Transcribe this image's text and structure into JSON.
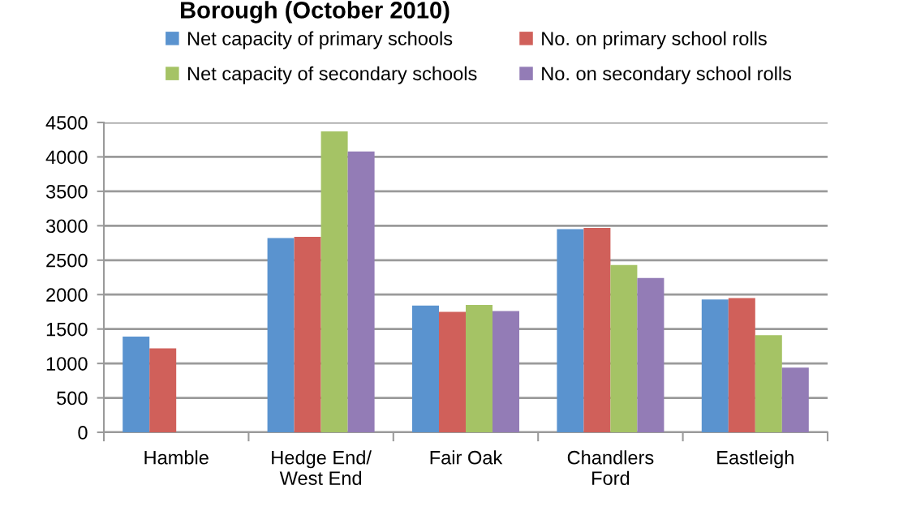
{
  "chart_data": {
    "type": "bar",
    "title": "Borough (October 2010)",
    "categories": [
      "Hamble",
      "Hedge End/\nWest End",
      "Fair Oak",
      "Chandlers\nFord",
      "Eastleigh"
    ],
    "series": [
      {
        "name": "Net capacity of primary schools",
        "color": "#5a93cf",
        "values": [
          1390,
          2820,
          1840,
          2950,
          1930
        ]
      },
      {
        "name": "No. on primary school rolls",
        "color": "#d0605a",
        "values": [
          1220,
          2840,
          1750,
          2970,
          1950
        ]
      },
      {
        "name": "Net capacity of secondary schools",
        "color": "#a5c365",
        "values": [
          0,
          4370,
          1850,
          2430,
          1410
        ]
      },
      {
        "name": "No. on secondary school rolls",
        "color": "#937cb6",
        "values": [
          0,
          4080,
          1760,
          2240,
          940
        ]
      }
    ],
    "ylim": [
      0,
      4500
    ],
    "yticks": [
      0,
      500,
      1000,
      1500,
      2000,
      2500,
      3000,
      3500,
      4000,
      4500
    ],
    "grid": "y",
    "legend": "top"
  }
}
